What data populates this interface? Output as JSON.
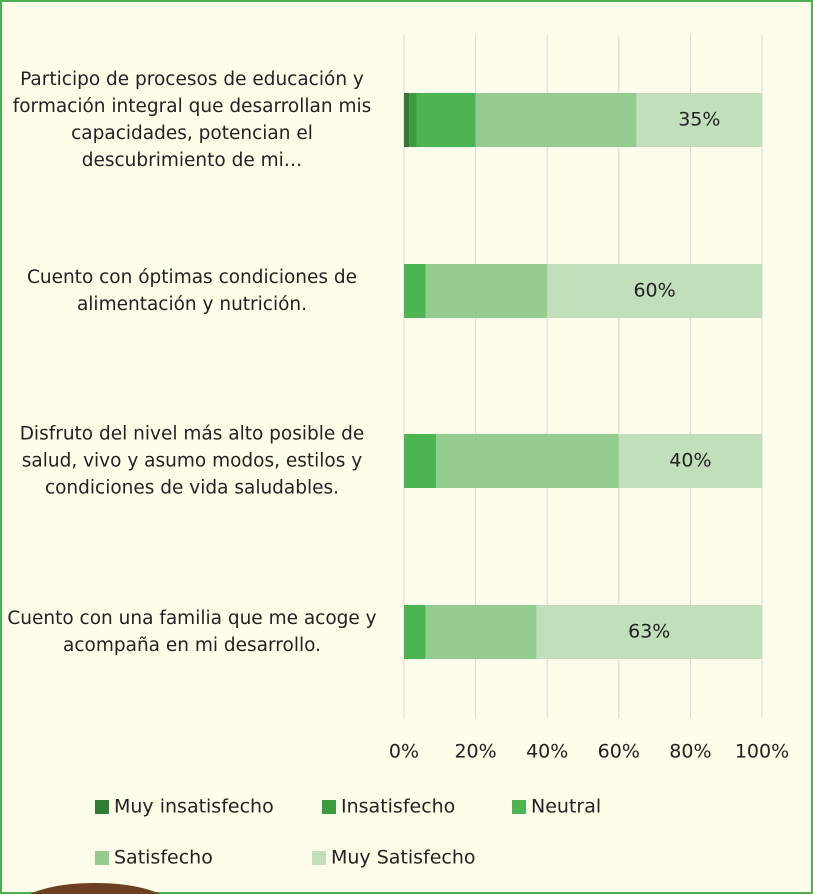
{
  "chart_data": {
    "type": "stacked-bar-horizontal",
    "categories": [
      "Participo de procesos de educación y formación integral que desarrollan mis capacidades, potencian el descubrimiento de mi…",
      "Cuento con óptimas condiciones de alimentación y nutrición.",
      "Disfruto del nivel más alto posible de salud, vivo y asumo modos, estilos y condiciones de vida saludables.",
      "Cuento con una familia que me acoge y acompaña en mi desarrollo."
    ],
    "series": [
      {
        "name": "Muy insatisfecho",
        "color": "#2e7d32",
        "values": [
          1.5,
          0,
          0,
          0
        ]
      },
      {
        "name": "Insatisfecho",
        "color": "#3b9c41",
        "values": [
          2,
          0,
          0,
          0
        ]
      },
      {
        "name": "Neutral",
        "color": "#4cb551",
        "values": [
          16.5,
          6,
          9,
          6
        ]
      },
      {
        "name": "Satisfecho",
        "color": "#93cc8e",
        "values": [
          45,
          34,
          51,
          31
        ]
      },
      {
        "name": "Muy Satisfecho",
        "color": "#c0dfba",
        "values": [
          35,
          60,
          40,
          63
        ],
        "value_labels": [
          "35%",
          "60%",
          "40%",
          "63%"
        ]
      }
    ],
    "xlim": [
      0,
      100
    ],
    "xticks": [
      {
        "value": 0,
        "label": "0%"
      },
      {
        "value": 20,
        "label": "20%"
      },
      {
        "value": 40,
        "label": "40%"
      },
      {
        "value": 60,
        "label": "60%"
      },
      {
        "value": 80,
        "label": "80%"
      },
      {
        "value": 100,
        "label": "100%"
      }
    ],
    "grid": true
  }
}
